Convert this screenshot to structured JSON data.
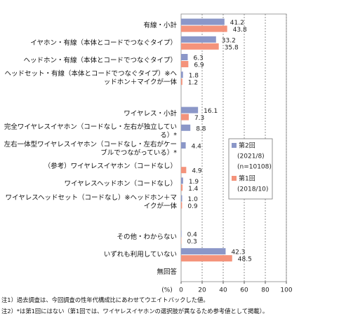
{
  "chart_data": {
    "type": "bar",
    "orientation": "horizontal",
    "categories": [
      "有線・小計",
      "イヤホン・有線（本体とコードでつなぐタイプ）",
      "ヘッドホン・有線（本体とコードでつなぐタイプ）",
      "ヘッドセット・有線（本体とコードでつなぐタイプ）※ヘッドホン＋マイクが一体",
      null,
      "ワイヤレス・小計",
      "完全ワイヤレスイヤホン（コードなし・左右が独立している）*",
      "左右一体型ワイヤレスイヤホン（コードなし・左右がケーブルでつながっている）*",
      "（参考）ワイヤレスイヤホン（コードなし）",
      "ワイヤレスヘッドホン（コードなし）",
      "ワイヤレスヘッドセット（コードなし）※ヘッドホン＋マイクが一体",
      null,
      "その他・わからない",
      "いずれも利用していない",
      "無回答"
    ],
    "series": [
      {
        "name": "第2回",
        "period": "(2021/8)",
        "sample": "(n=10108)",
        "color": "#8b97c8",
        "values": [
          41.2,
          33.2,
          6.3,
          1.8,
          null,
          16.1,
          8.8,
          4.4,
          null,
          1.9,
          1.0,
          null,
          0.4,
          42.3,
          null
        ],
        "value_labels": [
          "41.2",
          "33.2",
          "6.3",
          "1.8",
          null,
          "16.1",
          "8.8",
          "4.4",
          null,
          "1.9",
          "1.0",
          null,
          "0.4",
          "42.3",
          null
        ]
      },
      {
        "name": "第1回",
        "period": "(2018/10)",
        "color": "#f4937b",
        "values": [
          43.8,
          35.8,
          6.9,
          1.2,
          null,
          7.3,
          null,
          null,
          4.9,
          1.4,
          0.9,
          null,
          0.3,
          48.5,
          null
        ]
      }
    ],
    "xlim": [
      0,
      100
    ],
    "xticks": [
      0,
      20,
      40,
      60,
      80,
      100
    ],
    "xlabel": "(%)",
    "grid": true,
    "notes": [
      "注1）過去調査は、今回調査の性年代構成比にあわせてウエイトバックした値。",
      "注2）*は第1回にはない（第1回では、ワイヤレスイヤホンの選択肢が異なるため参考値として掲載）。"
    ]
  }
}
